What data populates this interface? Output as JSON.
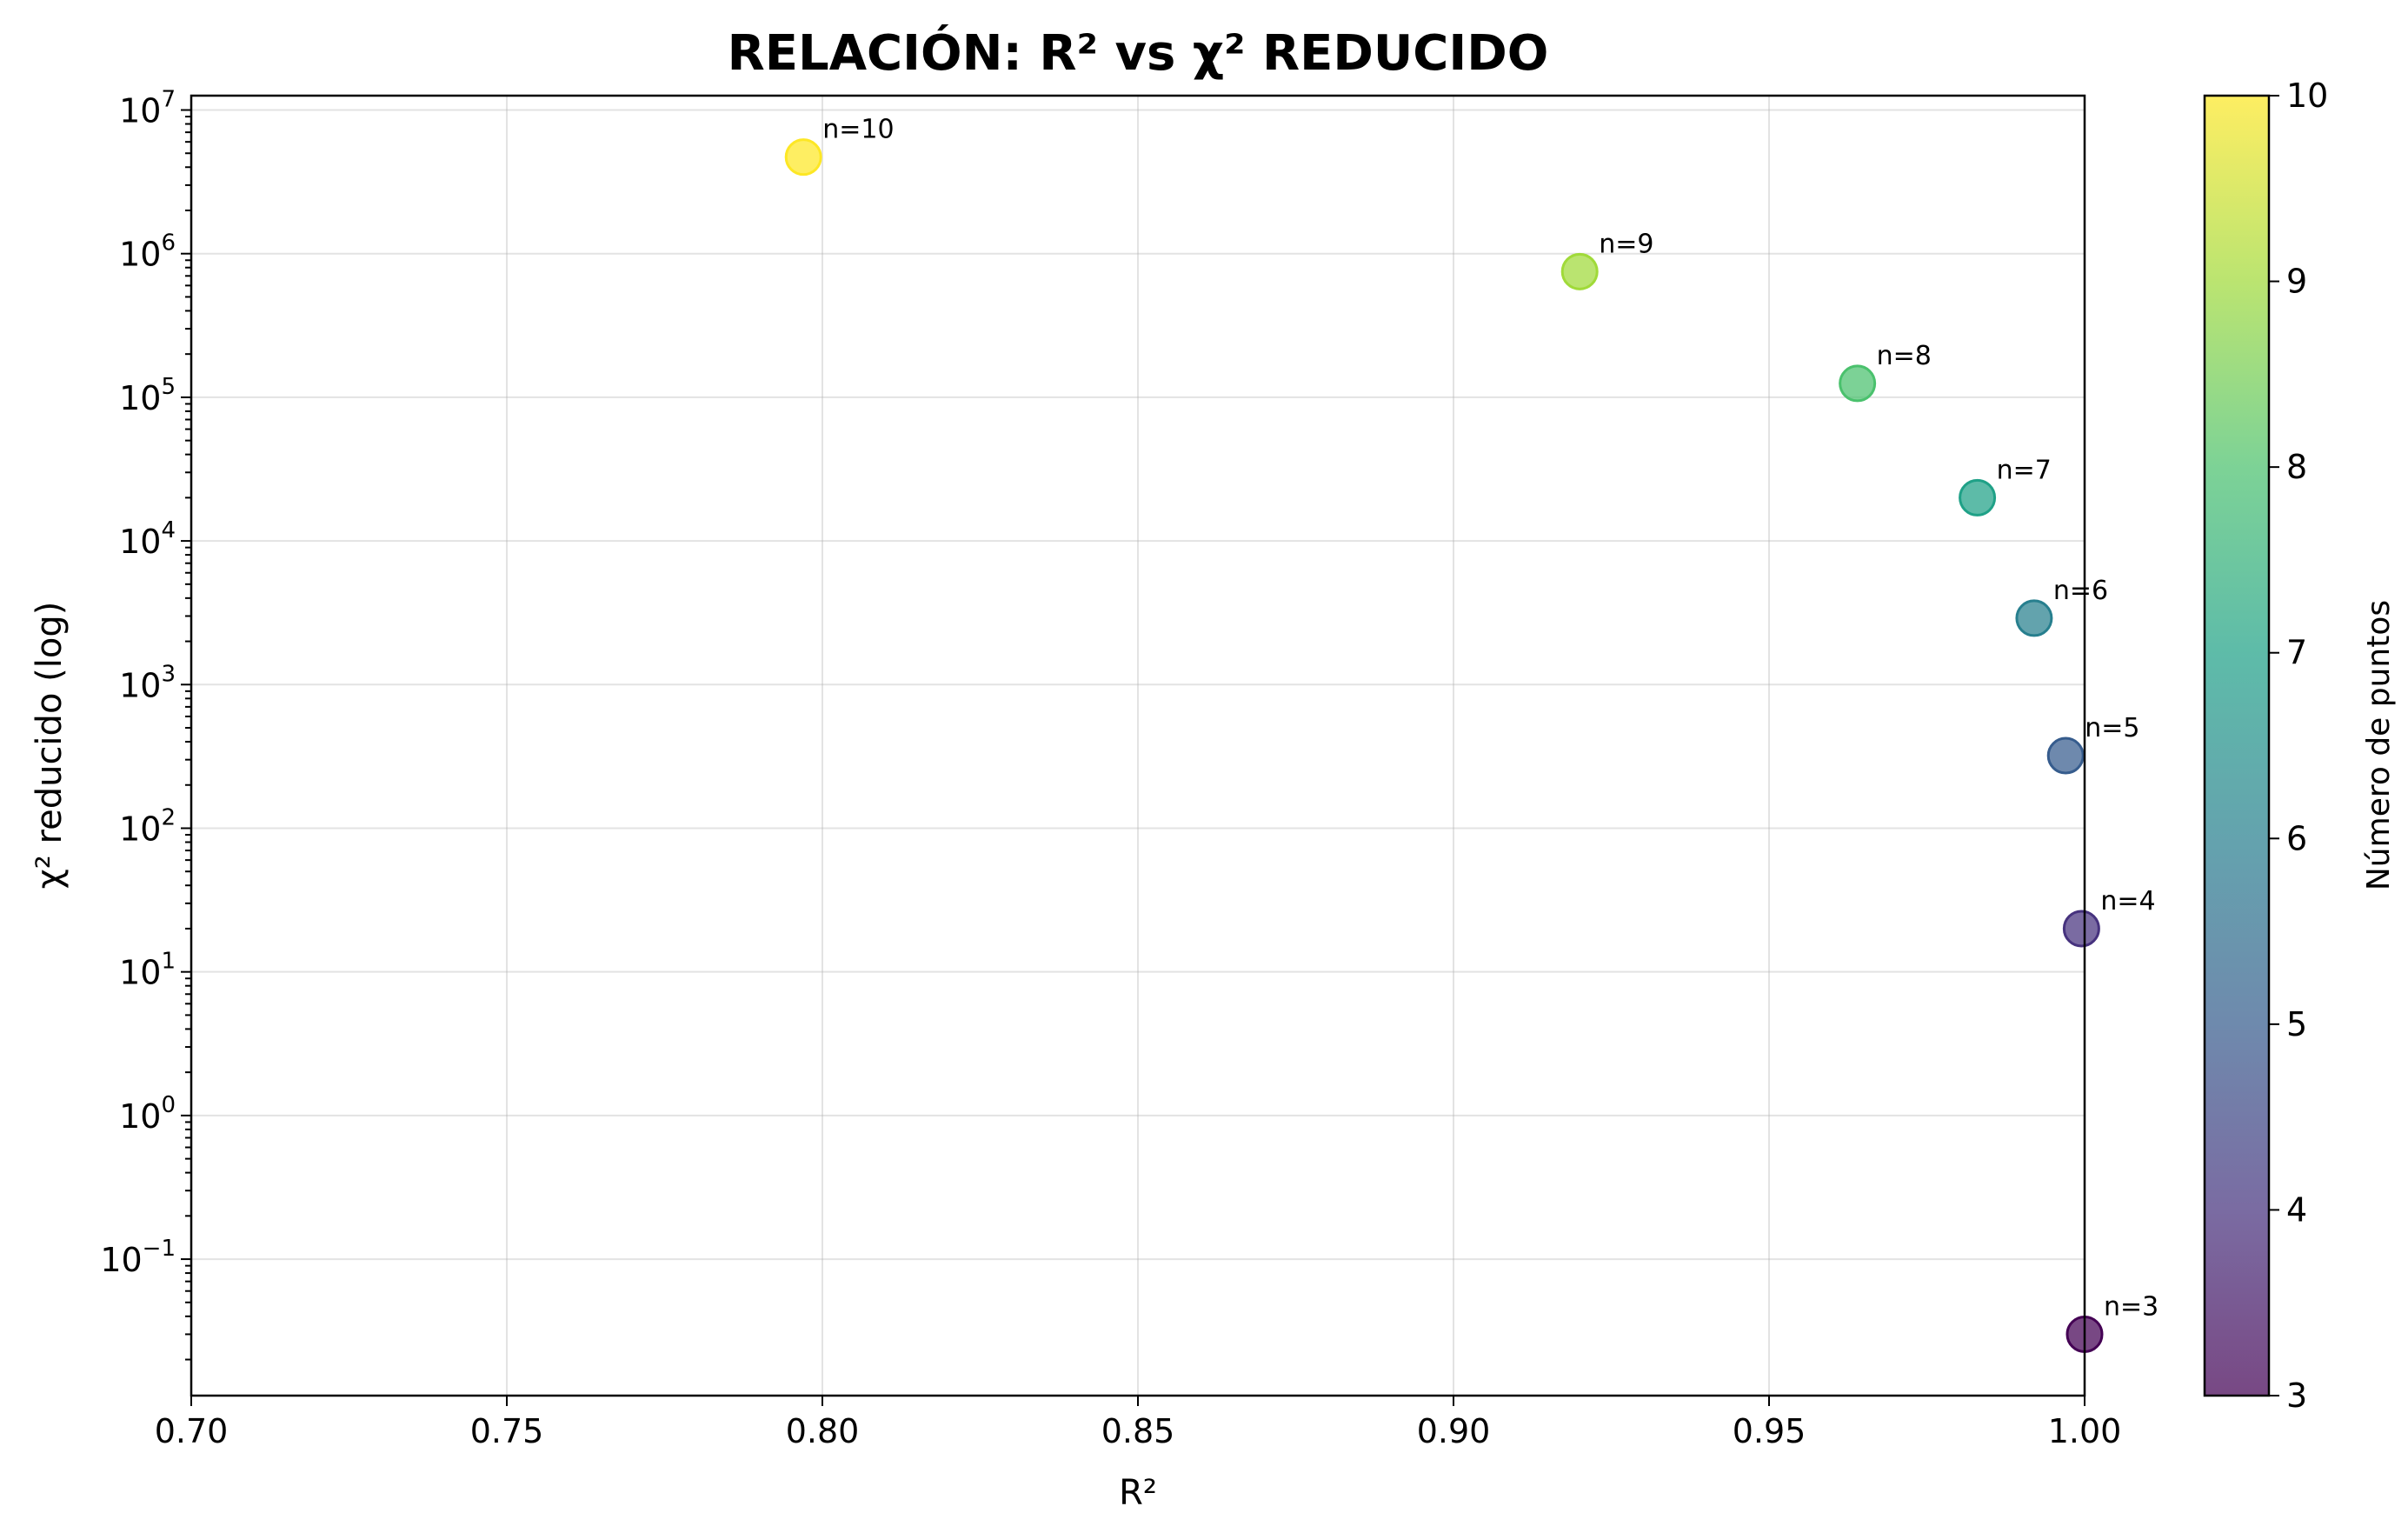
{
  "chart_data": {
    "type": "scatter",
    "title": "RELACIÓN: R² vs χ² REDUCIDO",
    "xlabel": "R²",
    "ylabel": "χ² reducido (log)",
    "xlim": [
      0.7,
      1.0
    ],
    "ylim_log10": [
      -1.95,
      7.1
    ],
    "yscale": "log",
    "grid": true,
    "x_ticks": [
      "0.70",
      "0.75",
      "0.80",
      "0.85",
      "0.90",
      "0.95",
      "1.00"
    ],
    "y_ticks": [
      {
        "base": "10",
        "exp": "−1",
        "value": -1
      },
      {
        "base": "10",
        "exp": "0",
        "value": 0
      },
      {
        "base": "10",
        "exp": "1",
        "value": 1
      },
      {
        "base": "10",
        "exp": "2",
        "value": 2
      },
      {
        "base": "10",
        "exp": "3",
        "value": 3
      },
      {
        "base": "10",
        "exp": "4",
        "value": 4
      },
      {
        "base": "10",
        "exp": "5",
        "value": 5
      },
      {
        "base": "10",
        "exp": "6",
        "value": 6
      },
      {
        "base": "10",
        "exp": "7",
        "value": 7
      }
    ],
    "points": [
      {
        "label": "n=3",
        "n": 3,
        "x": 1.0,
        "y": 0.03
      },
      {
        "label": "n=4",
        "n": 4,
        "x": 0.9995,
        "y": 20
      },
      {
        "label": "n=5",
        "n": 5,
        "x": 0.997,
        "y": 320
      },
      {
        "label": "n=6",
        "n": 6,
        "x": 0.992,
        "y": 2900
      },
      {
        "label": "n=7",
        "n": 7,
        "x": 0.983,
        "y": 20000
      },
      {
        "label": "n=8",
        "n": 8,
        "x": 0.964,
        "y": 125000
      },
      {
        "label": "n=9",
        "n": 9,
        "x": 0.92,
        "y": 750000
      },
      {
        "label": "n=10",
        "n": 10,
        "x": 0.797,
        "y": 4700000
      }
    ],
    "colorbar": {
      "label": "Número de puntos",
      "range": [
        3,
        10
      ],
      "ticks": [
        "3",
        "4",
        "5",
        "6",
        "7",
        "8",
        "9",
        "10"
      ],
      "colormap": "viridis",
      "colors": [
        "#440154",
        "#46327e",
        "#365c8d",
        "#277f8e",
        "#1fa187",
        "#4ac16d",
        "#a0da39",
        "#fde725"
      ]
    }
  }
}
